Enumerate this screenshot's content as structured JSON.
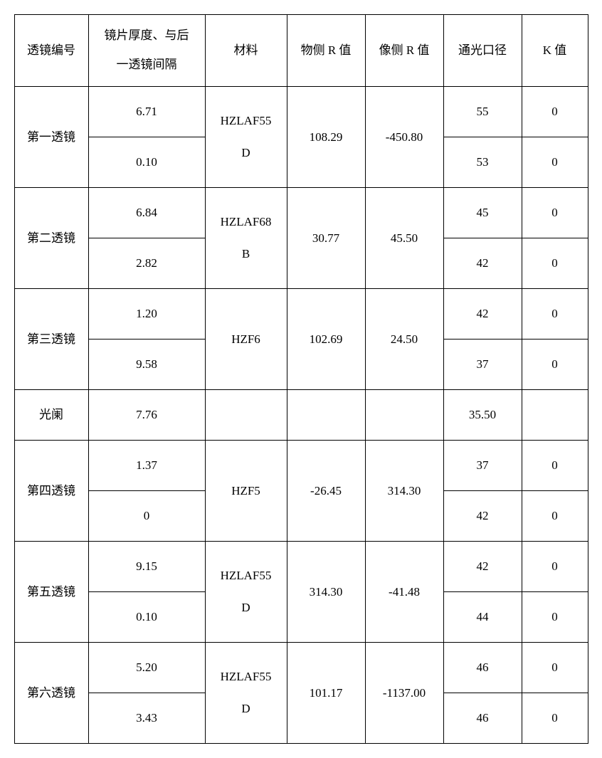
{
  "headers": {
    "lens_no": "透镜编号",
    "thickness_line1": "镜片厚度、与后",
    "thickness_line2": "一透镜间隔",
    "material": "材料",
    "obj_r": "物侧 R 值",
    "img_r": "像侧 R 值",
    "aperture": "通光口径",
    "k": "K 值"
  },
  "rows": [
    {
      "lens": "第一透镜",
      "t1": "6.71",
      "t2": "0.10",
      "mat_l1": "HZLAF55",
      "mat_l2": "D",
      "objR": "108.29",
      "imgR": "-450.80",
      "ap1": "55",
      "ap2": "53",
      "k1": "0",
      "k2": "0"
    },
    {
      "lens": "第二透镜",
      "t1": "6.84",
      "t2": "2.82",
      "mat_l1": "HZLAF68",
      "mat_l2": "B",
      "objR": "30.77",
      "imgR": "45.50",
      "ap1": "45",
      "ap2": "42",
      "k1": "0",
      "k2": "0"
    },
    {
      "lens": "第三透镜",
      "t1": "1.20",
      "t2": "9.58",
      "mat_l1": "HZF6",
      "mat_l2": "",
      "objR": "102.69",
      "imgR": "24.50",
      "ap1": "42",
      "ap2": "37",
      "k1": "0",
      "k2": "0"
    },
    {
      "lens": "光阑",
      "t1": "7.76",
      "objR": "",
      "imgR": "",
      "ap1": "35.50",
      "k1": "",
      "single": true
    },
    {
      "lens": "第四透镜",
      "t1": "1.37",
      "t2": "0",
      "mat_l1": "HZF5",
      "mat_l2": "",
      "objR": "-26.45",
      "imgR": "314.30",
      "ap1": "37",
      "ap2": "42",
      "k1": "0",
      "k2": "0"
    },
    {
      "lens": "第五透镜",
      "t1": "9.15",
      "t2": "0.10",
      "mat_l1": "HZLAF55",
      "mat_l2": "D",
      "objR": "314.30",
      "imgR": "-41.48",
      "ap1": "42",
      "ap2": "44",
      "k1": "0",
      "k2": "0"
    },
    {
      "lens": "第六透镜",
      "t1": "5.20",
      "t2": "3.43",
      "mat_l1": "HZLAF55",
      "mat_l2": "D",
      "objR": "101.17",
      "imgR": "-1137.00",
      "ap1": "46",
      "ap2": "46",
      "k1": "0",
      "k2": "0"
    }
  ]
}
